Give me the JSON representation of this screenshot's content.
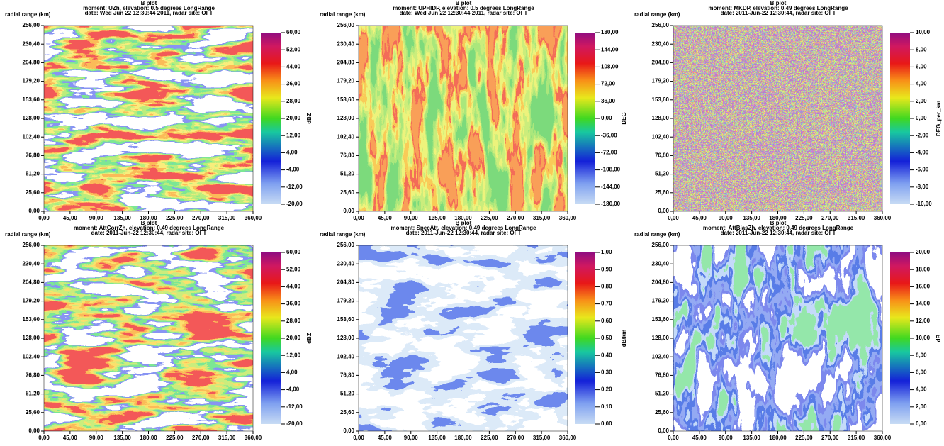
{
  "charts": [
    {
      "chart_data": {
        "type": "heatmap",
        "title": "B plot",
        "subtitle": "moment: UZh, elevation: 0.5 degrees LongRange",
        "caption": "date: Wed Jun 22 12:30:44 2011, radar site: OFT",
        "ylabel": "radial range (km)",
        "xlim": [
          0,
          360
        ],
        "xticks": [
          {
            "value": 0,
            "label": "0,00"
          },
          {
            "value": 45,
            "label": "45,00"
          },
          {
            "value": 90,
            "label": "90,00"
          },
          {
            "value": 135,
            "label": "135,00"
          },
          {
            "value": 180,
            "label": "180,00"
          },
          {
            "value": 225,
            "label": "225,00"
          },
          {
            "value": 270,
            "label": "270,00"
          },
          {
            "value": 315,
            "label": "315,00"
          },
          {
            "value": 360,
            "label": "360,00"
          }
        ],
        "ylim": [
          0,
          256
        ],
        "yticks": [
          {
            "value": 0,
            "label": "0,00"
          },
          {
            "value": 25.6,
            "label": "25,60"
          },
          {
            "value": 51.2,
            "label": "51,20"
          },
          {
            "value": 76.8,
            "label": "76,80"
          },
          {
            "value": 102.4,
            "label": "102,40"
          },
          {
            "value": 128,
            "label": "128,00"
          },
          {
            "value": 153.6,
            "label": "153,60"
          },
          {
            "value": 179.2,
            "label": "179,20"
          },
          {
            "value": 204.8,
            "label": "204,80"
          },
          {
            "value": 230.4,
            "label": "230,40"
          },
          {
            "value": 256,
            "label": "256,00"
          }
        ],
        "zlabel": "dBZ",
        "zlim": [
          -20,
          60
        ],
        "zticks": [
          {
            "value": -20,
            "label": "-20,00"
          },
          {
            "value": -12,
            "label": "-12,00"
          },
          {
            "value": -4,
            "label": "-4,00"
          },
          {
            "value": 4,
            "label": "4,00"
          },
          {
            "value": 12,
            "label": "12,00"
          },
          {
            "value": 20,
            "label": "20,00"
          },
          {
            "value": 28,
            "label": "28,00"
          },
          {
            "value": 36,
            "label": "36,00"
          },
          {
            "value": 44,
            "label": "44,00"
          },
          {
            "value": 52,
            "label": "52,00"
          },
          {
            "value": 60,
            "label": "60,00"
          }
        ]
      }
    },
    {
      "chart_data": {
        "type": "heatmap",
        "title": "B plot",
        "subtitle": "moment: UPHIDP, elevation: 0.5 degrees LongRange",
        "caption": "date: Wed Jun 22 12:30:44 2011, radar site: OFT",
        "ylabel": "radial range (km)",
        "xlim": [
          0,
          360
        ],
        "xticks": [
          {
            "value": 0,
            "label": "0,00"
          },
          {
            "value": 45,
            "label": "45,00"
          },
          {
            "value": 90,
            "label": "90,00"
          },
          {
            "value": 135,
            "label": "135,00"
          },
          {
            "value": 180,
            "label": "180,00"
          },
          {
            "value": 225,
            "label": "225,00"
          },
          {
            "value": 270,
            "label": "270,00"
          },
          {
            "value": 315,
            "label": "315,00"
          },
          {
            "value": 360,
            "label": "360,00"
          }
        ],
        "ylim": [
          0,
          256
        ],
        "yticks": [
          {
            "value": 0,
            "label": "0,00"
          },
          {
            "value": 25.6,
            "label": "25,60"
          },
          {
            "value": 51.2,
            "label": "51,20"
          },
          {
            "value": 76.8,
            "label": "76,80"
          },
          {
            "value": 102.4,
            "label": "102,40"
          },
          {
            "value": 128,
            "label": "128,00"
          },
          {
            "value": 153.6,
            "label": "153,60"
          },
          {
            "value": 179.2,
            "label": "179,20"
          },
          {
            "value": 204.8,
            "label": "204,80"
          },
          {
            "value": 230.4,
            "label": "230,40"
          },
          {
            "value": 256,
            "label": "256,00"
          }
        ],
        "zlabel": "DEG",
        "zlim": [
          -180,
          180
        ],
        "zticks": [
          {
            "value": -180,
            "label": "-180,00"
          },
          {
            "value": -144,
            "label": "-144,00"
          },
          {
            "value": -108,
            "label": "-108,00"
          },
          {
            "value": -72,
            "label": "-72,00"
          },
          {
            "value": -36,
            "label": "-36,00"
          },
          {
            "value": 0,
            "label": "0,00"
          },
          {
            "value": 36,
            "label": "36,00"
          },
          {
            "value": 72,
            "label": "72,00"
          },
          {
            "value": 108,
            "label": "108,00"
          },
          {
            "value": 144,
            "label": "144,00"
          },
          {
            "value": 180,
            "label": "180,00"
          }
        ]
      }
    },
    {
      "chart_data": {
        "type": "heatmap",
        "title": "B plot",
        "subtitle": "moment: MKDP, elevation: 0.49 degrees LongRange",
        "caption": "date: 2011-Jun-22 12:30:44, radar site: OFT",
        "ylabel": "radial range (km)",
        "xlim": [
          0,
          360
        ],
        "xticks": [
          {
            "value": 0,
            "label": "0,00"
          },
          {
            "value": 45,
            "label": "45,00"
          },
          {
            "value": 90,
            "label": "90,00"
          },
          {
            "value": 135,
            "label": "135,00"
          },
          {
            "value": 180,
            "label": "180,00"
          },
          {
            "value": 225,
            "label": "225,00"
          },
          {
            "value": 270,
            "label": "270,00"
          },
          {
            "value": 315,
            "label": "315,00"
          },
          {
            "value": 360,
            "label": "360,00"
          }
        ],
        "ylim": [
          0,
          256
        ],
        "yticks": [
          {
            "value": 0,
            "label": "0,00"
          },
          {
            "value": 25.6,
            "label": "25,60"
          },
          {
            "value": 51.2,
            "label": "51,20"
          },
          {
            "value": 76.8,
            "label": "76,80"
          },
          {
            "value": 102.4,
            "label": "102,40"
          },
          {
            "value": 128,
            "label": "128,00"
          },
          {
            "value": 153.6,
            "label": "153,60"
          },
          {
            "value": 179.2,
            "label": "179,20"
          },
          {
            "value": 204.8,
            "label": "204,80"
          },
          {
            "value": 230.4,
            "label": "230,40"
          },
          {
            "value": 256,
            "label": "256,00"
          }
        ],
        "zlabel": "DEG_per_km",
        "zlim": [
          -10,
          10
        ],
        "zticks": [
          {
            "value": -10,
            "label": "-10,00"
          },
          {
            "value": -8,
            "label": "-8,00"
          },
          {
            "value": -6,
            "label": "-6,00"
          },
          {
            "value": -4,
            "label": "-4,00"
          },
          {
            "value": -2,
            "label": "-2,00"
          },
          {
            "value": 0,
            "label": "0,00"
          },
          {
            "value": 2,
            "label": "2,00"
          },
          {
            "value": 4,
            "label": "4,00"
          },
          {
            "value": 6,
            "label": "6,00"
          },
          {
            "value": 8,
            "label": "8,00"
          },
          {
            "value": 10,
            "label": "10,00"
          }
        ]
      }
    },
    {
      "chart_data": {
        "type": "heatmap",
        "title": "B plot",
        "subtitle": "moment: AttCorrZh, elevation: 0.49 degrees LongRange",
        "caption": "date: 2011-Jun-22 12:30:44, radar site: OFT",
        "ylabel": "radial range (km)",
        "xlim": [
          0,
          360
        ],
        "xticks": [
          {
            "value": 0,
            "label": "0,00"
          },
          {
            "value": 45,
            "label": "45,00"
          },
          {
            "value": 90,
            "label": "90,00"
          },
          {
            "value": 135,
            "label": "135,00"
          },
          {
            "value": 180,
            "label": "180,00"
          },
          {
            "value": 225,
            "label": "225,00"
          },
          {
            "value": 270,
            "label": "270,00"
          },
          {
            "value": 315,
            "label": "315,00"
          },
          {
            "value": 360,
            "label": "360,00"
          }
        ],
        "ylim": [
          0,
          256
        ],
        "yticks": [
          {
            "value": 0,
            "label": "0,00"
          },
          {
            "value": 25.6,
            "label": "25,60"
          },
          {
            "value": 51.2,
            "label": "51,20"
          },
          {
            "value": 76.8,
            "label": "76,80"
          },
          {
            "value": 102.4,
            "label": "102,40"
          },
          {
            "value": 128,
            "label": "128,00"
          },
          {
            "value": 153.6,
            "label": "153,60"
          },
          {
            "value": 179.2,
            "label": "179,20"
          },
          {
            "value": 204.8,
            "label": "204,80"
          },
          {
            "value": 230.4,
            "label": "230,40"
          },
          {
            "value": 256,
            "label": "256,00"
          }
        ],
        "zlabel": "dBZ",
        "zlim": [
          -20,
          60
        ],
        "zticks": [
          {
            "value": -20,
            "label": "-20,00"
          },
          {
            "value": -12,
            "label": "-12,00"
          },
          {
            "value": -4,
            "label": "-4,00"
          },
          {
            "value": 4,
            "label": "4,00"
          },
          {
            "value": 12,
            "label": "12,00"
          },
          {
            "value": 20,
            "label": "20,00"
          },
          {
            "value": 28,
            "label": "28,00"
          },
          {
            "value": 36,
            "label": "36,00"
          },
          {
            "value": 44,
            "label": "44,00"
          },
          {
            "value": 52,
            "label": "52,00"
          },
          {
            "value": 60,
            "label": "60,00"
          }
        ]
      }
    },
    {
      "chart_data": {
        "type": "heatmap",
        "title": "B plot",
        "subtitle": "moment: SpecAtt, elevation: 0.49 degrees LongRange",
        "caption": "date: 2011-Jun-22 12:30:44, radar site: OFT",
        "ylabel": "radial range (km)",
        "xlim": [
          0,
          360
        ],
        "xticks": [
          {
            "value": 0,
            "label": "0,00"
          },
          {
            "value": 45,
            "label": "45,00"
          },
          {
            "value": 90,
            "label": "90,00"
          },
          {
            "value": 135,
            "label": "135,00"
          },
          {
            "value": 180,
            "label": "180,00"
          },
          {
            "value": 225,
            "label": "225,00"
          },
          {
            "value": 270,
            "label": "270,00"
          },
          {
            "value": 315,
            "label": "315,00"
          },
          {
            "value": 360,
            "label": "360,00"
          }
        ],
        "ylim": [
          0,
          256
        ],
        "yticks": [
          {
            "value": 0,
            "label": "0,00"
          },
          {
            "value": 25.6,
            "label": "25,60"
          },
          {
            "value": 51.2,
            "label": "51,20"
          },
          {
            "value": 76.8,
            "label": "76,80"
          },
          {
            "value": 102.4,
            "label": "102,40"
          },
          {
            "value": 128,
            "label": "128,00"
          },
          {
            "value": 153.6,
            "label": "153,60"
          },
          {
            "value": 179.2,
            "label": "179,20"
          },
          {
            "value": 204.8,
            "label": "204,80"
          },
          {
            "value": 230.4,
            "label": "230,40"
          },
          {
            "value": 256,
            "label": "256,00"
          }
        ],
        "zlabel": "dB/km",
        "zlim": [
          0,
          1
        ],
        "zticks": [
          {
            "value": 0,
            "label": "0,00"
          },
          {
            "value": 0.1,
            "label": "0,10"
          },
          {
            "value": 0.2,
            "label": "0,20"
          },
          {
            "value": 0.3,
            "label": "0,30"
          },
          {
            "value": 0.4,
            "label": "0,40"
          },
          {
            "value": 0.5,
            "label": "0,50"
          },
          {
            "value": 0.6,
            "label": "0,60"
          },
          {
            "value": 0.7,
            "label": "0,70"
          },
          {
            "value": 0.8,
            "label": "0,80"
          },
          {
            "value": 0.9,
            "label": "0,90"
          },
          {
            "value": 1,
            "label": "1,00"
          }
        ]
      }
    },
    {
      "chart_data": {
        "type": "heatmap",
        "title": "B plot",
        "subtitle": "moment: AttBiasZh, elevation: 0.49 degrees LongRange",
        "caption": "date: 2011-Jun-22 12:30:44, radar site: OFT",
        "ylabel": "radial range (km)",
        "xlim": [
          0,
          360
        ],
        "xticks": [
          {
            "value": 0,
            "label": "0,00"
          },
          {
            "value": 45,
            "label": "45,00"
          },
          {
            "value": 90,
            "label": "90,00"
          },
          {
            "value": 135,
            "label": "135,00"
          },
          {
            "value": 180,
            "label": "180,00"
          },
          {
            "value": 225,
            "label": "225,00"
          },
          {
            "value": 270,
            "label": "270,00"
          },
          {
            "value": 315,
            "label": "315,00"
          },
          {
            "value": 360,
            "label": "360,00"
          }
        ],
        "ylim": [
          0,
          256
        ],
        "yticks": [
          {
            "value": 0,
            "label": "0,00"
          },
          {
            "value": 25.6,
            "label": "25,60"
          },
          {
            "value": 51.2,
            "label": "51,20"
          },
          {
            "value": 76.8,
            "label": "76,80"
          },
          {
            "value": 102.4,
            "label": "102,40"
          },
          {
            "value": 128,
            "label": "128,00"
          },
          {
            "value": 153.6,
            "label": "153,60"
          },
          {
            "value": 179.2,
            "label": "179,20"
          },
          {
            "value": 204.8,
            "label": "204,80"
          },
          {
            "value": 230.4,
            "label": "230,40"
          },
          {
            "value": 256,
            "label": "256,00"
          }
        ],
        "zlabel": "dB",
        "zlim": [
          0,
          20
        ],
        "zticks": [
          {
            "value": 0,
            "label": "0,00"
          },
          {
            "value": 2,
            "label": "2,00"
          },
          {
            "value": 4,
            "label": "4,00"
          },
          {
            "value": 6,
            "label": "6,00"
          },
          {
            "value": 8,
            "label": "8,00"
          },
          {
            "value": 10,
            "label": "10,00"
          },
          {
            "value": 12,
            "label": "12,00"
          },
          {
            "value": 14,
            "label": "14,00"
          },
          {
            "value": 16,
            "label": "16,00"
          },
          {
            "value": 18,
            "label": "18,00"
          },
          {
            "value": 20,
            "label": "20,00"
          }
        ]
      }
    }
  ]
}
